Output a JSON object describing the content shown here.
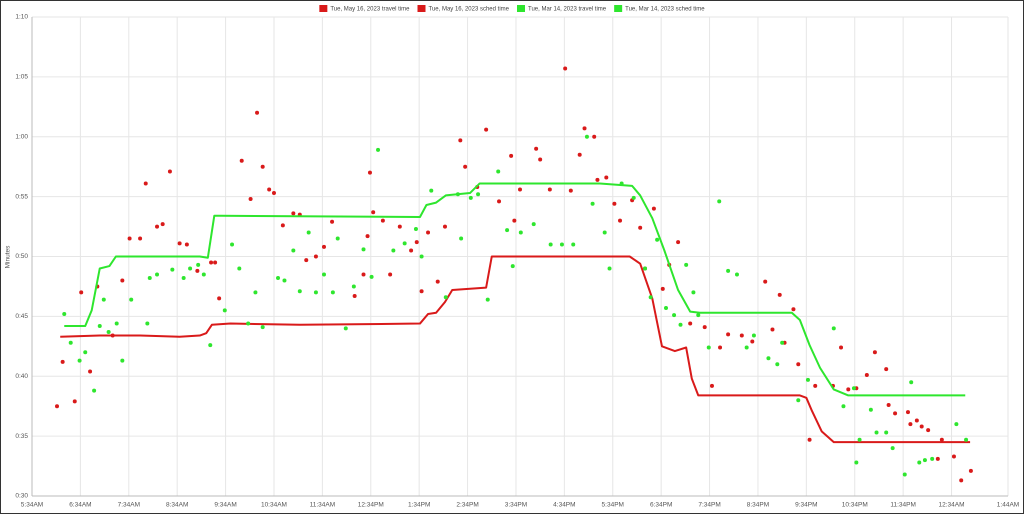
{
  "chart_data": {
    "type": "combo",
    "y_axis_label": "Minutes",
    "xlim": [
      334,
      1544
    ],
    "xticks": [
      {
        "value": 334,
        "label": "5:34AM"
      },
      {
        "value": 394,
        "label": "6:34AM"
      },
      {
        "value": 454,
        "label": "7:34AM"
      },
      {
        "value": 514,
        "label": "8:34AM"
      },
      {
        "value": 574,
        "label": "9:34AM"
      },
      {
        "value": 634,
        "label": "10:34AM"
      },
      {
        "value": 694,
        "label": "11:34AM"
      },
      {
        "value": 754,
        "label": "12:34PM"
      },
      {
        "value": 814,
        "label": "1:34PM"
      },
      {
        "value": 874,
        "label": "2:34PM"
      },
      {
        "value": 934,
        "label": "3:34PM"
      },
      {
        "value": 994,
        "label": "4:34PM"
      },
      {
        "value": 1054,
        "label": "5:34PM"
      },
      {
        "value": 1114,
        "label": "6:34PM"
      },
      {
        "value": 1174,
        "label": "7:34PM"
      },
      {
        "value": 1234,
        "label": "8:34PM"
      },
      {
        "value": 1294,
        "label": "9:34PM"
      },
      {
        "value": 1354,
        "label": "10:34PM"
      },
      {
        "value": 1414,
        "label": "11:34PM"
      },
      {
        "value": 1474,
        "label": "12:34AM"
      },
      {
        "value": 1544,
        "label": "1:44AM"
      }
    ],
    "ylim": [
      30,
      70
    ],
    "yticks": [
      {
        "value": 30,
        "label": "0:30"
      },
      {
        "value": 35,
        "label": "0:35"
      },
      {
        "value": 40,
        "label": "0:40"
      },
      {
        "value": 45,
        "label": "0:45"
      },
      {
        "value": 50,
        "label": "0:50"
      },
      {
        "value": 55,
        "label": "0:55"
      },
      {
        "value": 60,
        "label": "1:00"
      },
      {
        "value": 65,
        "label": "1:05"
      },
      {
        "value": 70,
        "label": "1:10"
      }
    ],
    "grid": true,
    "legend": "top",
    "series": [
      {
        "name": "Tue, May 16, 2023 travel time",
        "type": "scatter",
        "color": "#d91a1a",
        "x": [
          365,
          372,
          387,
          395,
          406,
          415,
          434,
          446,
          455,
          468,
          475,
          489,
          496,
          505,
          517,
          526,
          539,
          556,
          561,
          566,
          594,
          605,
          613,
          620,
          628,
          634,
          645,
          658,
          666,
          674,
          686,
          696,
          706,
          734,
          745,
          750,
          753,
          757,
          769,
          778,
          790,
          804,
          811,
          817,
          825,
          837,
          846,
          865,
          871,
          886,
          897,
          913,
          928,
          932,
          939,
          959,
          964,
          976,
          995,
          1002,
          1013,
          1019,
          1031,
          1035,
          1046,
          1056,
          1063,
          1078,
          1088,
          1094,
          1105,
          1116,
          1124,
          1135,
          1150,
          1168,
          1177,
          1187,
          1197,
          1214,
          1227,
          1243,
          1252,
          1261,
          1267,
          1278,
          1284,
          1298,
          1305,
          1327,
          1337,
          1346,
          1356,
          1369,
          1379,
          1393,
          1396,
          1404,
          1420,
          1423,
          1431,
          1437,
          1445,
          1457,
          1462,
          1477,
          1486,
          1498
        ],
        "values": [
          37.5,
          41.2,
          37.9,
          47.0,
          40.4,
          47.5,
          43.4,
          48.0,
          51.5,
          51.5,
          56.1,
          52.5,
          52.7,
          57.1,
          51.1,
          51.0,
          48.8,
          49.5,
          49.5,
          46.5,
          58.0,
          54.8,
          62.0,
          57.5,
          55.6,
          55.3,
          52.6,
          53.6,
          53.5,
          49.7,
          50.0,
          50.8,
          52.9,
          46.7,
          48.5,
          51.7,
          57.0,
          53.7,
          53.0,
          48.5,
          52.5,
          50.5,
          51.2,
          47.1,
          52.0,
          47.9,
          52.5,
          59.7,
          57.5,
          55.8,
          60.6,
          54.6,
          58.4,
          53.0,
          55.6,
          59.0,
          58.1,
          55.6,
          65.7,
          55.5,
          58.5,
          60.7,
          60.0,
          56.4,
          56.6,
          54.4,
          53.0,
          54.7,
          52.4,
          49.0,
          54.0,
          47.3,
          49.3,
          51.2,
          44.4,
          44.1,
          39.2,
          42.4,
          43.5,
          43.4,
          42.9,
          47.9,
          43.9,
          46.8,
          42.8,
          45.6,
          41.0,
          34.7,
          39.2,
          39.2,
          42.4,
          38.9,
          39.0,
          40.1,
          42.0,
          40.6,
          37.6,
          36.9,
          37.0,
          36.0,
          36.3,
          35.8,
          35.5,
          33.1,
          34.7,
          33.3,
          31.3,
          32.1
        ]
      },
      {
        "name": "Tue, May 16, 2023 sched time",
        "type": "line",
        "color": "#d91a1a",
        "x": [
          369,
          418,
          468,
          517,
          542,
          550,
          557,
          580,
          666,
          815,
          825,
          835,
          846,
          855,
          897,
          904,
          964,
          1075,
          1088,
          1103,
          1115,
          1131,
          1145,
          1152,
          1160,
          1286,
          1294,
          1301,
          1313,
          1328,
          1497
        ],
        "values": [
          43.3,
          43.4,
          43.4,
          43.3,
          43.4,
          43.6,
          44.3,
          44.4,
          44.3,
          44.4,
          45.2,
          45.3,
          46.2,
          47.2,
          47.4,
          50.0,
          50.0,
          50.0,
          49.4,
          46.5,
          42.5,
          42.1,
          42.4,
          39.8,
          38.4,
          38.4,
          38.2,
          37.1,
          35.4,
          34.5,
          34.5
        ]
      },
      {
        "name": "Tue, Mar 14, 2023 travel time",
        "type": "scatter",
        "color": "#2ee62e",
        "x": [
          374,
          382,
          393,
          400,
          411,
          418,
          423,
          429,
          439,
          446,
          457,
          477,
          480,
          489,
          508,
          522,
          530,
          540,
          547,
          555,
          573,
          582,
          591,
          602,
          611,
          620,
          639,
          647,
          658,
          666,
          677,
          686,
          696,
          707,
          713,
          723,
          733,
          745,
          755,
          763,
          782,
          796,
          810,
          817,
          829,
          847,
          862,
          866,
          878,
          887,
          899,
          912,
          923,
          930,
          940,
          956,
          977,
          991,
          1005,
          1022,
          1029,
          1044,
          1050,
          1065,
          1080,
          1094,
          1101,
          1109,
          1120,
          1130,
          1138,
          1145,
          1154,
          1160,
          1173,
          1186,
          1197,
          1208,
          1220,
          1229,
          1247,
          1258,
          1264,
          1284,
          1296,
          1328,
          1340,
          1353,
          1356,
          1360,
          1374,
          1381,
          1393,
          1401,
          1416,
          1424,
          1434,
          1441,
          1450,
          1480,
          1492
        ],
        "values": [
          45.2,
          42.8,
          41.3,
          42.0,
          38.8,
          44.2,
          46.4,
          43.7,
          44.4,
          41.3,
          46.4,
          44.4,
          48.2,
          48.5,
          48.9,
          48.2,
          49.0,
          49.3,
          48.5,
          42.6,
          45.5,
          51.0,
          49.0,
          44.4,
          47.0,
          44.1,
          48.2,
          48.0,
          50.5,
          47.1,
          52.0,
          47.0,
          48.5,
          47.0,
          51.5,
          44.0,
          47.5,
          50.6,
          48.3,
          58.9,
          50.5,
          51.1,
          52.3,
          50.0,
          55.5,
          46.6,
          55.2,
          51.5,
          54.9,
          55.2,
          46.4,
          57.1,
          52.2,
          49.2,
          52.0,
          52.7,
          51.0,
          51.0,
          51.0,
          60.0,
          54.4,
          52.0,
          49.0,
          56.1,
          54.9,
          49.0,
          46.6,
          51.4,
          45.7,
          45.1,
          44.3,
          49.3,
          47.0,
          45.1,
          42.4,
          54.6,
          48.8,
          48.5,
          42.4,
          43.4,
          41.5,
          41.0,
          42.8,
          38.0,
          39.7,
          44.0,
          37.5,
          39.0,
          32.8,
          34.7,
          37.2,
          35.3,
          35.3,
          34.0,
          31.8,
          39.5,
          32.8,
          33.0,
          33.1,
          36.0,
          34.7
        ]
      },
      {
        "name": "Tue, Mar 14, 2023 sched time",
        "type": "line",
        "color": "#2ee62e",
        "x": [
          374,
          400,
          408,
          418,
          430,
          438,
          542,
          552,
          560,
          567,
          815,
          823,
          835,
          847,
          877,
          889,
          1038,
          1078,
          1088,
          1103,
          1118,
          1135,
          1150,
          1162,
          1276,
          1286,
          1298,
          1311,
          1328,
          1346,
          1447,
          1491
        ],
        "values": [
          44.2,
          44.2,
          45.5,
          49.0,
          49.2,
          50.0,
          50.0,
          49.9,
          53.4,
          53.4,
          53.3,
          54.3,
          54.5,
          55.1,
          55.3,
          56.1,
          56.1,
          55.9,
          55.1,
          53.2,
          50.5,
          47.2,
          45.4,
          45.3,
          45.3,
          44.7,
          42.6,
          40.7,
          38.9,
          38.4,
          38.4,
          38.4
        ]
      }
    ]
  }
}
